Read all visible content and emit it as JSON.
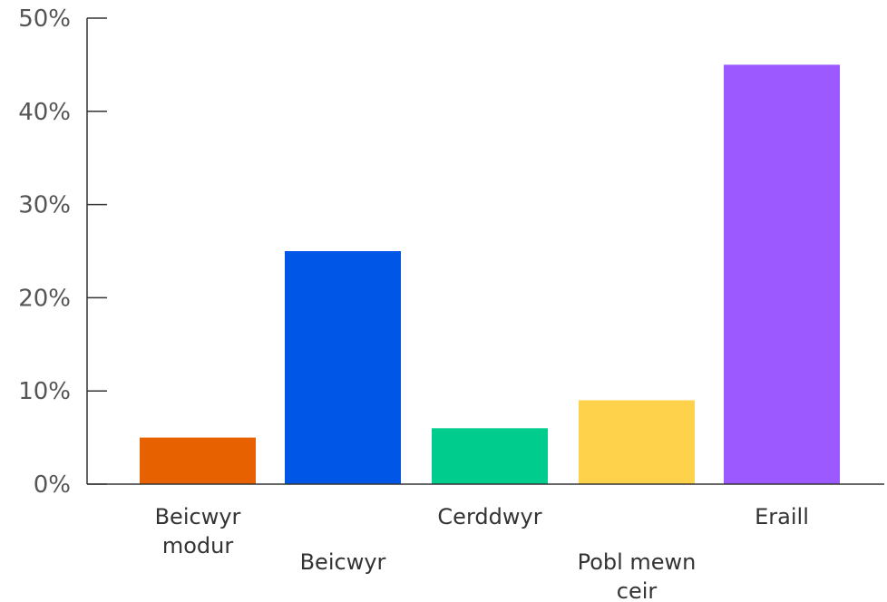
{
  "chart_data": {
    "type": "bar",
    "title": "",
    "xlabel": "",
    "ylabel": "",
    "categories": [
      [
        "Beicwyr",
        "modur"
      ],
      [
        "Beicwyr"
      ],
      [
        "Cerddwyr"
      ],
      [
        "Pobl mewn",
        "ceir"
      ],
      [
        "Eraill"
      ]
    ],
    "values": [
      5,
      25,
      6,
      9,
      45
    ],
    "colors": [
      "#E86100",
      "#0057E7",
      "#00CC8E",
      "#FFD24C",
      "#9B59FF"
    ],
    "ylim": [
      0,
      50
    ],
    "yticks": [
      0,
      10,
      20,
      30,
      40,
      50
    ],
    "ytick_labels": [
      "0%",
      "10%",
      "20%",
      "30%",
      "40%",
      "50%"
    ],
    "category_label_rows": [
      0,
      1,
      0,
      1,
      0
    ],
    "grid": false,
    "legend": "none"
  }
}
